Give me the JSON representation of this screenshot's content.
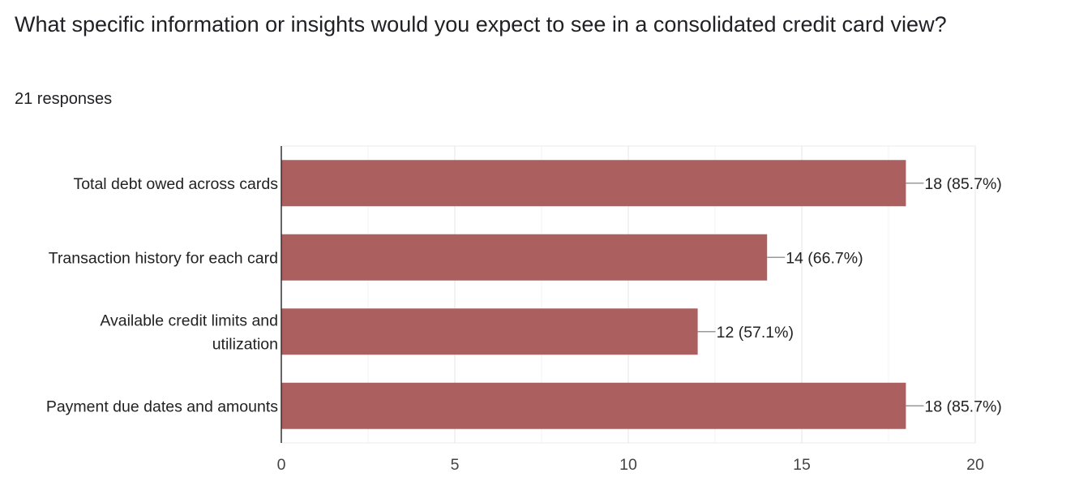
{
  "question": {
    "title": "What specific information or insights would you expect to see in a consolidated credit card view?",
    "responses_text": "21 responses"
  },
  "chart_data": {
    "type": "bar",
    "orientation": "horizontal",
    "categories": [
      "Total debt owed across cards",
      "Transaction history for each card",
      "Available credit limits and utilization",
      "Payment due dates and amounts"
    ],
    "category_lines": [
      [
        "Total debt owed across cards"
      ],
      [
        "Transaction history for each card"
      ],
      [
        "Available credit limits and",
        "utilization"
      ],
      [
        "Payment due dates and amounts"
      ]
    ],
    "values": [
      18,
      14,
      12,
      18
    ],
    "data_labels": [
      "18 (85.7%)",
      "14 (66.7%)",
      "12 (57.1%)",
      "18 (85.7%)"
    ],
    "xlim": [
      0,
      20
    ],
    "xticks": [
      0,
      5,
      10,
      15,
      20
    ],
    "grid": true,
    "bar_color": "#ab5f5e",
    "title": "",
    "xlabel": "",
    "ylabel": ""
  }
}
